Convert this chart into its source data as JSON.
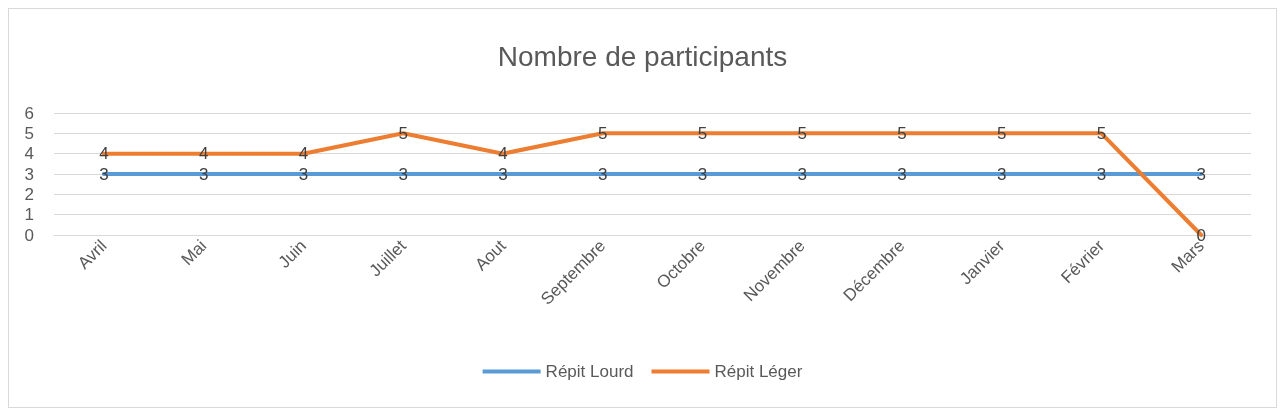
{
  "chart_data": {
    "type": "line",
    "title": "Nombre de participants",
    "categories": [
      "Avril",
      "Mai",
      "Juin",
      "Juillet",
      "Aout",
      "Septembre",
      "Octobre",
      "Novembre",
      "Décembre",
      "Janvier",
      "Février",
      "Mars"
    ],
    "series": [
      {
        "name": "Répit Lourd",
        "color": "#5b9bd5",
        "values": [
          3,
          3,
          3,
          3,
          3,
          3,
          3,
          3,
          3,
          3,
          3,
          3
        ]
      },
      {
        "name": "Répit Léger",
        "color": "#ed7d31",
        "values": [
          4,
          4,
          4,
          5,
          4,
          5,
          5,
          5,
          5,
          5,
          5,
          0
        ]
      }
    ],
    "ylim": [
      0,
      6
    ],
    "yticks": [
      0,
      1,
      2,
      3,
      4,
      5,
      6
    ],
    "grid": "y",
    "legend": "bottom",
    "data_labels": true,
    "marker": "none",
    "line_style": "solid"
  }
}
